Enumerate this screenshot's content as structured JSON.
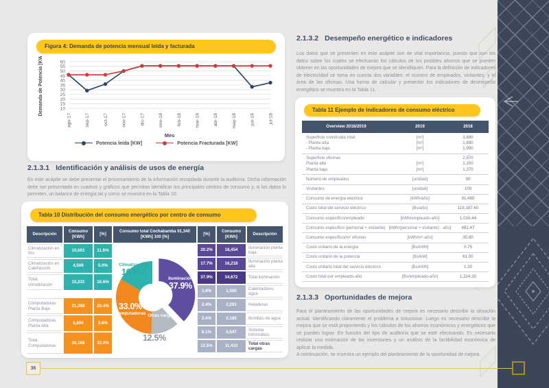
{
  "page": {
    "number": "36"
  },
  "colors": {
    "yellow": "#ffc61e",
    "navy_sidebar": "#3b4759",
    "header_slate": "#44546a",
    "teal": "#2fb2ad",
    "orange": "#f5921e",
    "purple": "#5a4897",
    "purple_dark": "#4a3a86",
    "gray_blue": "#a9b1c6",
    "line_red": "#cf3a3a",
    "line_blue": "#2d4468"
  },
  "chart_data": [
    {
      "id": "figure4-line",
      "type": "line",
      "title": "Figura 4: Demanda de potencia mensual leída y facturada",
      "x": [
        "ago-17",
        "sep-17",
        "oct-17",
        "nov-17",
        "dic-17",
        "ene-18",
        "feb-18",
        "mar-18",
        "abr-18",
        "may-18",
        "jun-18",
        "jul-18"
      ],
      "series": [
        {
          "name": "Potencia leída [KW]",
          "color": "#2d4468",
          "values": [
            46,
            29,
            36,
            50,
            55.5,
            55.5,
            55.5,
            55.5,
            55.5,
            55.5,
            33,
            37.5
          ]
        },
        {
          "name": "Potencia Fracturada [KW]",
          "color": "#cf3a3a",
          "values": [
            46,
            46,
            46,
            50,
            55.5,
            55.5,
            55.5,
            55.5,
            55.5,
            55.5,
            55.5,
            55.5
          ]
        }
      ],
      "xlabel": "Mes",
      "ylabel": "Demanda de Potencia [KW]",
      "ylim": [
        10,
        60
      ],
      "ytick_step": 5,
      "grid": true,
      "legend_position": "bottom"
    },
    {
      "id": "tabla10-donut",
      "type": "pie",
      "title": "Consumo total Cochabamba 91,340 [KWh] 100 [%]",
      "hole": 0.38,
      "slices": [
        {
          "label": "Iluminación",
          "value": 37.9,
          "color": "#5f4da0",
          "explode": 10
        },
        {
          "label": "Otras cargas",
          "value": 12.5,
          "color": "#b4bac4"
        },
        {
          "label": "Computadoras",
          "value": 33.0,
          "color": "#f0871f"
        },
        {
          "label": "Climatización",
          "value": 16.6,
          "color": "#2fb2ad"
        }
      ]
    }
  ],
  "left_page": {
    "figure4": {
      "title": "Figura 4: Demanda de potencia mensual leída y facturada"
    },
    "section_2131": {
      "number": "2.1.3.1",
      "title": "Identificación y análisis de usos de energía",
      "body": "En este acápite se debe presentar el procesamiento de la información recopilada durante la auditoría. Dicha información debe ser presentada en cuadros y gráficos que permitan identificar los principales centros de consumo y, si los datos lo permiten, un balance de energía tal y como se muestra en la Tabla 10:"
    },
    "tabla10": {
      "title": "Tabla 10 Distribución del consumo energético por centro de consumo",
      "headers": {
        "desc_left": "Descripción",
        "consumo_left": "Consumo [KWh]",
        "pct_left": "[%]",
        "middle_line1": "Consumo total Cochabamba 91,340",
        "middle_line2": "[KWh] 100 [%]",
        "pct_right": "[%]",
        "consumo_right": "Consumo [KWh]",
        "desc_right": "Descripción"
      },
      "left_rows": [
        {
          "desc": "Climatización en frío",
          "consumo": "10,661",
          "pct": "11.6%",
          "group": "teal"
        },
        {
          "desc": "Climatización en Calefacción",
          "consumo": "4,569",
          "pct": "5.0%",
          "group": "teal"
        },
        {
          "desc": "Total, climatización",
          "consumo": "15,231",
          "pct": "16.6%",
          "group": "teal"
        },
        {
          "spacer": true
        },
        {
          "desc": "Computadoras Planta Baja",
          "consumo": "21,368",
          "pct": "23.4%",
          "group": "orange"
        },
        {
          "desc": "Computadoras Planta Alta",
          "consumo": "8,800",
          "pct": "9.6%",
          "group": "orange"
        },
        {
          "desc": "Total, Computadoras",
          "consumo": "30,168",
          "pct": "33.0%",
          "group": "orange"
        }
      ],
      "right_rows": [
        {
          "pct": "20.2%",
          "consumo": "18,454",
          "desc": "Iluminación planta baja",
          "group": "purple"
        },
        {
          "pct": "17.7%",
          "consumo": "16,218",
          "desc": "Iluminación planta alta",
          "group": "purple"
        },
        {
          "pct": "37.9%",
          "consumo": "34,672",
          "desc": "Total iluminación",
          "group": "purple_dark"
        },
        {
          "pct": "1.6%",
          "consumo": "1,500",
          "desc": "Calentadores agua",
          "group": "gray_blue"
        },
        {
          "pct": "2.4%",
          "consumo": "2,203",
          "desc": "Heladeras",
          "group": "gray_blue"
        },
        {
          "pct": "2.4%",
          "consumo": "2,160",
          "desc": "Bombas de agua",
          "group": "gray_blue"
        },
        {
          "pct": "6.1%",
          "consumo": "5,547",
          "desc": "Sistema Informático",
          "group": "gray_blue"
        },
        {
          "pct": "12.5%",
          "consumo": "11,410",
          "desc": "Total otras cargas",
          "group": "gray_blue",
          "bold": true
        }
      ],
      "donut_labels": {
        "climatizacion_name": "Climatización",
        "climatizacion_pct": "16.6%",
        "iluminacion_name": "Iluminación",
        "iluminacion_pct": "37.9%",
        "computadoras_pct": "33.0%",
        "computadoras_name": "Computadoras",
        "otras_name": "Otras cargas",
        "otras_pct": "12.5%"
      }
    }
  },
  "right_page": {
    "section_2132": {
      "number": "2.1.3.2",
      "title": "Desempeño energético e indicadores",
      "body": "Los datos que se presenten en este acápite son de vital importancia, puesto que son los datos sobre los cuales se efectuarán los cálculos de los posibles ahorros que se pueden obtener en las oportunidades de mejora que se identifiquen. Para la definición de indicadores de electricidad se toma en cuenta dos variables: el número de empleados, visitantes, y el área de las oficinas. Una forma de calcular y presentar los indicadores de desempeño energético se muestra en la Tabla 11."
    },
    "tabla11": {
      "title": "Tabla 11 Ejemplo de indicadores de consumo eléctrico",
      "headers": [
        "Overview 2018/2019",
        "2019",
        "2018"
      ],
      "rows": [
        {
          "label": [
            "Superficie construida total",
            "- Planta alta",
            "- Planta baja"
          ],
          "unit": [
            "[m²]",
            "[m²]",
            "[m²]"
          ],
          "value": [
            "3,880",
            "1,890",
            "1,990"
          ]
        },
        {
          "label": [
            "Superficie oficinas",
            "Planta alta",
            "Planta baja"
          ],
          "unit": [
            "",
            "[m²]",
            "[m²]"
          ],
          "value": [
            "2,570",
            "1,200",
            "1,370"
          ]
        },
        {
          "label": [
            "Número de empleados"
          ],
          "unit": [
            "[unidad]"
          ],
          "value": [
            "90"
          ]
        },
        {
          "label": [
            "Visitantes"
          ],
          "unit": [
            "[unidad]"
          ],
          "value": [
            "100"
          ]
        },
        {
          "label": [
            "Consumo de energía eléctrica"
          ],
          "unit": [
            "[kWh/año]"
          ],
          "value": [
            "91,480"
          ]
        },
        {
          "label": [
            "Costo total del servicio eléctrico"
          ],
          "unit": [
            "[Bs/año]"
          ],
          "value": [
            "119,187.60"
          ]
        },
        {
          "label": [
            "Consumo específico/empleado"
          ],
          "unit": [
            "[kWh/empleado-año]"
          ],
          "value": [
            "1,016.44"
          ]
        },
        {
          "label": [
            "Consumo específico (personal + visitante)"
          ],
          "unit": [
            "[kWh/(personal + visitante) - año]"
          ],
          "value": [
            "481.47"
          ]
        },
        {
          "label": [
            "Consumo específico/m² oficinas"
          ],
          "unit": [
            "[kWh/m²-año]"
          ],
          "value": [
            "35.60"
          ]
        },
        {
          "label": [
            "Costo unitario de la energía"
          ],
          "unit": [
            "[Bs/kWh]"
          ],
          "value": [
            "0.75"
          ]
        },
        {
          "label": [
            "Costo unitario de la potencia"
          ],
          "unit": [
            "[Bs/kW]"
          ],
          "value": [
            "61.00"
          ]
        },
        {
          "label": [
            "Costo unitario total del servicio eléctrico"
          ],
          "unit": [
            "[Bs/kWh]"
          ],
          "value": [
            "1.30"
          ]
        },
        {
          "label": [
            "Costo total por empleado-año"
          ],
          "unit": [
            "[Bs/empleado-año]"
          ],
          "value": [
            "1,324.30"
          ]
        }
      ]
    },
    "section_2133": {
      "number": "2.1.3.3",
      "title": "Oportunidades de mejora",
      "body1": "Para el planteamiento de las oportunidades de mejora es necesario describir la situación actual, identificando claramente el problema a solucionar. Luego es necesario describir la mejora que se está proponiendo y los cálculos de los ahorros económicos y energéticos que se pueden lograr. En función del tipo de auditoría que se esté efectuando. Es necesario realizar una estimación de las inversiones y un análisis de la factibilidad económica de aplicar la medida.",
      "body2": "A continuación, se muestra un ejemplo del planteamiento de la oportunidad de mejora."
    }
  }
}
